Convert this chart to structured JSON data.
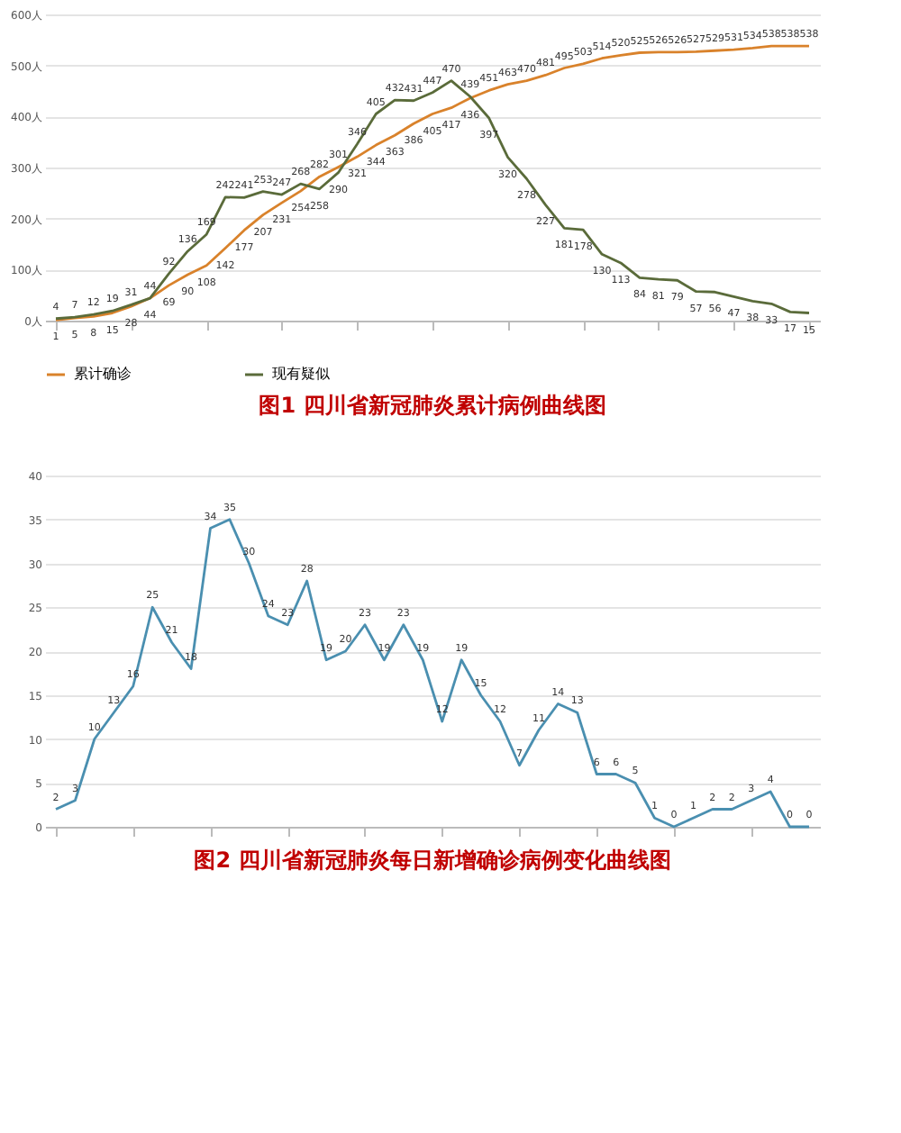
{
  "chart_data": [
    {
      "type": "line",
      "title": "图1   四川省新冠肺炎累计病例曲线图",
      "categories": [
        null,
        null,
        null,
        null,
        null,
        null,
        null,
        null,
        null,
        null,
        null,
        null,
        null,
        null,
        null,
        null,
        null,
        null,
        null,
        null,
        null,
        null,
        null,
        null,
        null,
        null,
        null,
        null,
        null,
        null,
        null,
        null,
        null,
        null,
        null,
        null,
        null,
        null,
        null,
        null,
        null
      ],
      "series": [
        {
          "name": "累计确诊",
          "color": "#d9822b",
          "values": [
            1,
            5,
            8,
            15,
            28,
            44,
            69,
            90,
            108,
            142,
            177,
            207,
            231,
            254,
            282,
            301,
            321,
            344,
            363,
            386,
            405,
            417,
            436,
            451,
            463,
            470,
            481,
            495,
            503,
            514,
            520,
            525,
            526,
            526,
            527,
            529,
            531,
            534,
            538,
            538,
            538
          ]
        },
        {
          "name": "现有疑似",
          "color": "#5a6b3a",
          "values": [
            4,
            7,
            12,
            19,
            31,
            44,
            92,
            136,
            169,
            242,
            241,
            253,
            247,
            268,
            258,
            290,
            346,
            405,
            432,
            431,
            447,
            470,
            439,
            397,
            320,
            278,
            227,
            181,
            178,
            130,
            113,
            84,
            81,
            79,
            57,
            56,
            47,
            38,
            33,
            17,
            15
          ]
        }
      ],
      "ylim": [
        0,
        600
      ],
      "yticks": [
        {
          "value": 0,
          "label": "0人"
        },
        {
          "value": 100,
          "label": "100人"
        },
        {
          "value": 200,
          "label": "200人"
        },
        {
          "value": 300,
          "label": "300人"
        },
        {
          "value": 400,
          "label": "400人"
        },
        {
          "value": 500,
          "label": "500人"
        },
        {
          "value": 600,
          "label": "600人"
        }
      ],
      "grid": "y",
      "legend": "bottom",
      "data_labels": true,
      "tick_labels": "y",
      "marker": "none"
    },
    {
      "type": "line",
      "title": "图2   四川省新冠肺炎每日新增确诊病例变化曲线图",
      "categories": [
        null,
        null,
        null,
        null,
        null,
        null,
        null,
        null,
        null,
        null,
        null,
        null,
        null,
        null,
        null,
        null,
        null,
        null,
        null,
        null,
        null,
        null,
        null,
        null,
        null,
        null,
        null,
        null,
        null,
        null,
        null,
        null,
        null,
        null,
        null,
        null,
        null,
        null,
        null,
        null
      ],
      "series": [
        {
          "color": "#4a8fb0",
          "values": [
            2,
            3,
            10,
            13,
            16,
            25,
            21,
            18,
            34,
            35,
            30,
            24,
            23,
            28,
            19,
            20,
            23,
            19,
            23,
            19,
            12,
            19,
            15,
            12,
            7,
            11,
            14,
            13,
            6,
            6,
            5,
            1,
            0,
            1,
            2,
            2,
            3,
            4,
            0,
            0
          ]
        }
      ],
      "ylim": [
        0,
        40
      ],
      "yticks": [
        0,
        5,
        10,
        15,
        20,
        25,
        30,
        35,
        40
      ],
      "grid": "y",
      "data_labels": true,
      "tick_labels": "y",
      "marker": "none"
    }
  ]
}
